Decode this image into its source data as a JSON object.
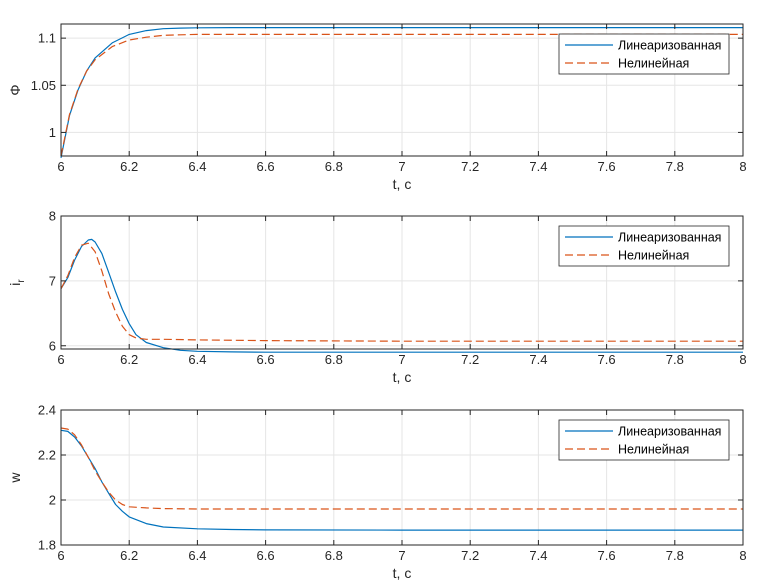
{
  "chart_data": [
    {
      "type": "line",
      "xlabel": "t, c",
      "ylabel": "Φ",
      "ylabel_sub": "",
      "xlim": [
        6,
        8
      ],
      "ylim": [
        0.975,
        1.115
      ],
      "xticks": [
        6,
        6.2,
        6.4,
        6.6,
        6.8,
        7,
        7.2,
        7.4,
        7.6,
        7.8,
        8
      ],
      "xtick_labels": [
        "6",
        "6.2",
        "6.4",
        "6.6",
        "6.8",
        "7",
        "7.2",
        "7.4",
        "7.6",
        "7.8",
        "8"
      ],
      "yticks": [
        1,
        1.05,
        1.1
      ],
      "ytick_labels": [
        "1",
        "1.05",
        "1.1"
      ],
      "grid": true,
      "legend_position": "top-right",
      "series": [
        {
          "name": "Линеаризованная",
          "style": "solid",
          "color": "#0072BD",
          "x": [
            6,
            6.025,
            6.05,
            6.075,
            6.1,
            6.15,
            6.2,
            6.25,
            6.3,
            6.35,
            6.4,
            6.5,
            6.6,
            6.8,
            7,
            8
          ],
          "y": [
            0.973,
            1.018,
            1.045,
            1.065,
            1.079,
            1.095,
            1.104,
            1.108,
            1.11,
            1.1107,
            1.111,
            1.1112,
            1.1112,
            1.1112,
            1.1112,
            1.1112
          ]
        },
        {
          "name": "Нелинейная",
          "style": "dashed",
          "color": "#D95319",
          "x": [
            6,
            6.025,
            6.05,
            6.075,
            6.1,
            6.15,
            6.2,
            6.25,
            6.3,
            6.35,
            6.4,
            6.5,
            6.6,
            6.8,
            7,
            8
          ],
          "y": [
            0.975,
            1.019,
            1.046,
            1.065,
            1.077,
            1.091,
            1.098,
            1.101,
            1.103,
            1.1035,
            1.104,
            1.104,
            1.104,
            1.104,
            1.104,
            1.104
          ]
        }
      ]
    },
    {
      "type": "line",
      "xlabel": "t, c",
      "ylabel": "i",
      "ylabel_sub": "r",
      "xlim": [
        6,
        8
      ],
      "ylim": [
        5.95,
        8
      ],
      "xticks": [
        6,
        6.2,
        6.4,
        6.6,
        6.8,
        7,
        7.2,
        7.4,
        7.6,
        7.8,
        8
      ],
      "xtick_labels": [
        "6",
        "6.2",
        "6.4",
        "6.6",
        "6.8",
        "7",
        "7.2",
        "7.4",
        "7.6",
        "7.8",
        "8"
      ],
      "yticks": [
        6,
        7,
        8
      ],
      "ytick_labels": [
        "6",
        "7",
        "8"
      ],
      "grid": true,
      "legend_position": "top-right",
      "series": [
        {
          "name": "Линеаризованная",
          "style": "solid",
          "color": "#0072BD",
          "x": [
            6,
            6.02,
            6.04,
            6.06,
            6.08,
            6.09,
            6.1,
            6.12,
            6.14,
            6.16,
            6.18,
            6.2,
            6.22,
            6.25,
            6.3,
            6.35,
            6.4,
            6.5,
            6.6,
            7,
            8
          ],
          "y": [
            6.88,
            7.05,
            7.32,
            7.53,
            7.63,
            7.64,
            7.6,
            7.42,
            7.13,
            6.83,
            6.56,
            6.34,
            6.17,
            6.05,
            5.97,
            5.93,
            5.915,
            5.905,
            5.9,
            5.9,
            5.9
          ]
        },
        {
          "name": "Нелинейная",
          "style": "dashed",
          "color": "#D95319",
          "x": [
            6,
            6.02,
            6.04,
            6.06,
            6.08,
            6.1,
            6.12,
            6.14,
            6.16,
            6.18,
            6.2,
            6.22,
            6.25,
            6.3,
            6.4,
            6.6,
            7,
            8
          ],
          "y": [
            6.88,
            7.08,
            7.36,
            7.55,
            7.58,
            7.45,
            7.15,
            6.8,
            6.52,
            6.3,
            6.17,
            6.12,
            6.1,
            6.1,
            6.09,
            6.08,
            6.07,
            6.07
          ]
        }
      ]
    },
    {
      "type": "line",
      "xlabel": "t, c",
      "ylabel": "w",
      "ylabel_sub": "",
      "xlim": [
        6,
        8
      ],
      "ylim": [
        1.8,
        2.4
      ],
      "xticks": [
        6,
        6.2,
        6.4,
        6.6,
        6.8,
        7,
        7.2,
        7.4,
        7.6,
        7.8,
        8
      ],
      "xtick_labels": [
        "6",
        "6.2",
        "6.4",
        "6.6",
        "6.8",
        "7",
        "7.2",
        "7.4",
        "7.6",
        "7.8",
        "8"
      ],
      "yticks": [
        1.8,
        2,
        2.2,
        2.4
      ],
      "ytick_labels": [
        "1.8",
        "2",
        "2.2",
        "2.4"
      ],
      "grid": true,
      "legend_position": "top-right",
      "series": [
        {
          "name": "Линеаризованная",
          "style": "solid",
          "color": "#0072BD",
          "x": [
            6,
            6.02,
            6.04,
            6.06,
            6.08,
            6.1,
            6.12,
            6.14,
            6.16,
            6.18,
            6.2,
            6.25,
            6.3,
            6.4,
            6.5,
            6.6,
            7,
            8
          ],
          "y": [
            2.31,
            2.305,
            2.28,
            2.24,
            2.19,
            2.14,
            2.08,
            2.03,
            1.98,
            1.95,
            1.925,
            1.895,
            1.88,
            1.872,
            1.869,
            1.867,
            1.866,
            1.866
          ]
        },
        {
          "name": "Нелинейная",
          "style": "dashed",
          "color": "#D95319",
          "x": [
            6,
            6.02,
            6.04,
            6.06,
            6.08,
            6.1,
            6.12,
            6.14,
            6.16,
            6.18,
            6.2,
            6.25,
            6.3,
            6.4,
            6.6,
            7,
            8
          ],
          "y": [
            2.32,
            2.315,
            2.29,
            2.245,
            2.19,
            2.13,
            2.08,
            2.035,
            2.0,
            1.98,
            1.97,
            1.965,
            1.962,
            1.96,
            1.96,
            1.96,
            1.96
          ]
        }
      ]
    }
  ]
}
